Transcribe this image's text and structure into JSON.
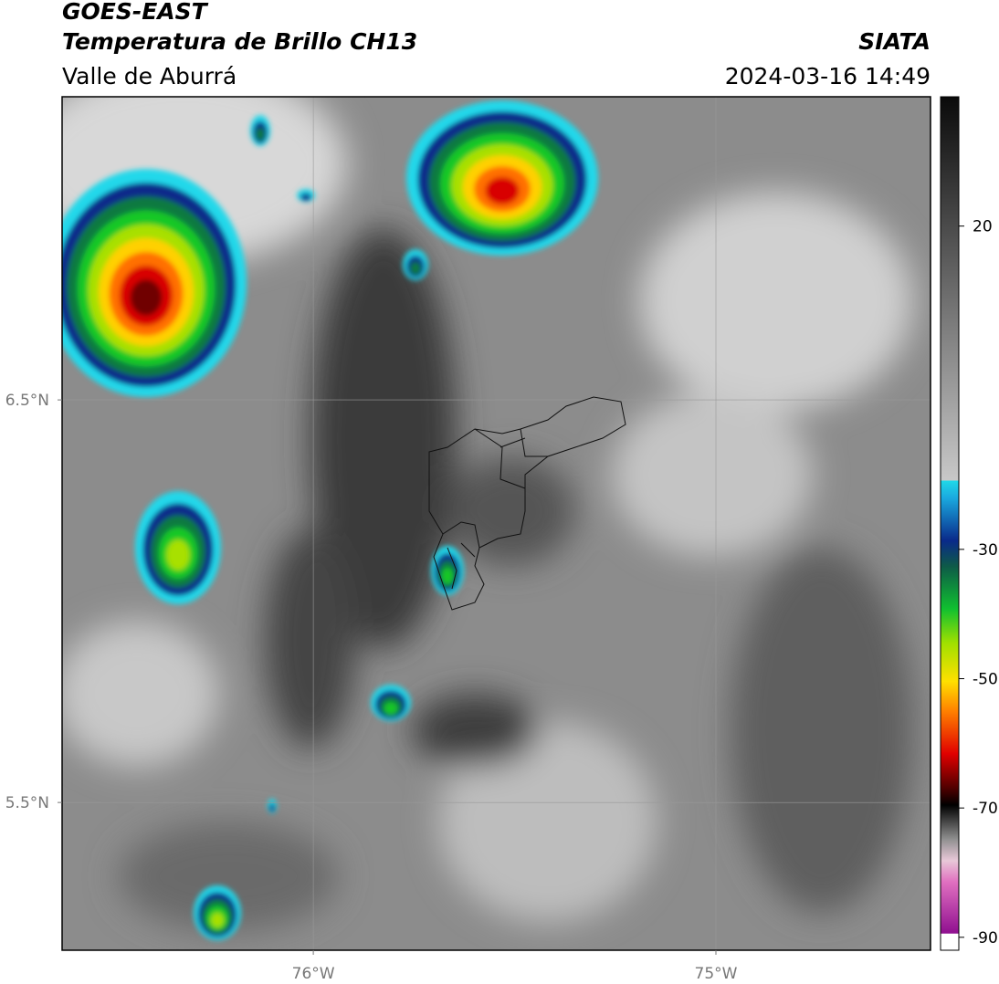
{
  "header": {
    "title": "GOES-EAST",
    "subtitle": "Temperatura de Brillo CH13",
    "source": "SIATA",
    "region": "Valle de Aburrá",
    "datetime": "2024-03-16 14:49"
  },
  "map": {
    "xlim": [
      -76.624,
      -74.467
    ],
    "ylim": [
      5.133,
      7.253
    ],
    "xticks": [
      {
        "value": -76,
        "label": "76°W"
      },
      {
        "value": -75,
        "label": "75°W"
      }
    ],
    "yticks": [
      {
        "value": 6.5,
        "label": "6.5°N"
      },
      {
        "value": 5.5,
        "label": "5.5°N"
      }
    ],
    "grid": true
  },
  "colorbar": {
    "lim": [
      -92,
      40
    ],
    "ticks": [
      20,
      -30,
      -50,
      -70,
      -90
    ]
  }
}
